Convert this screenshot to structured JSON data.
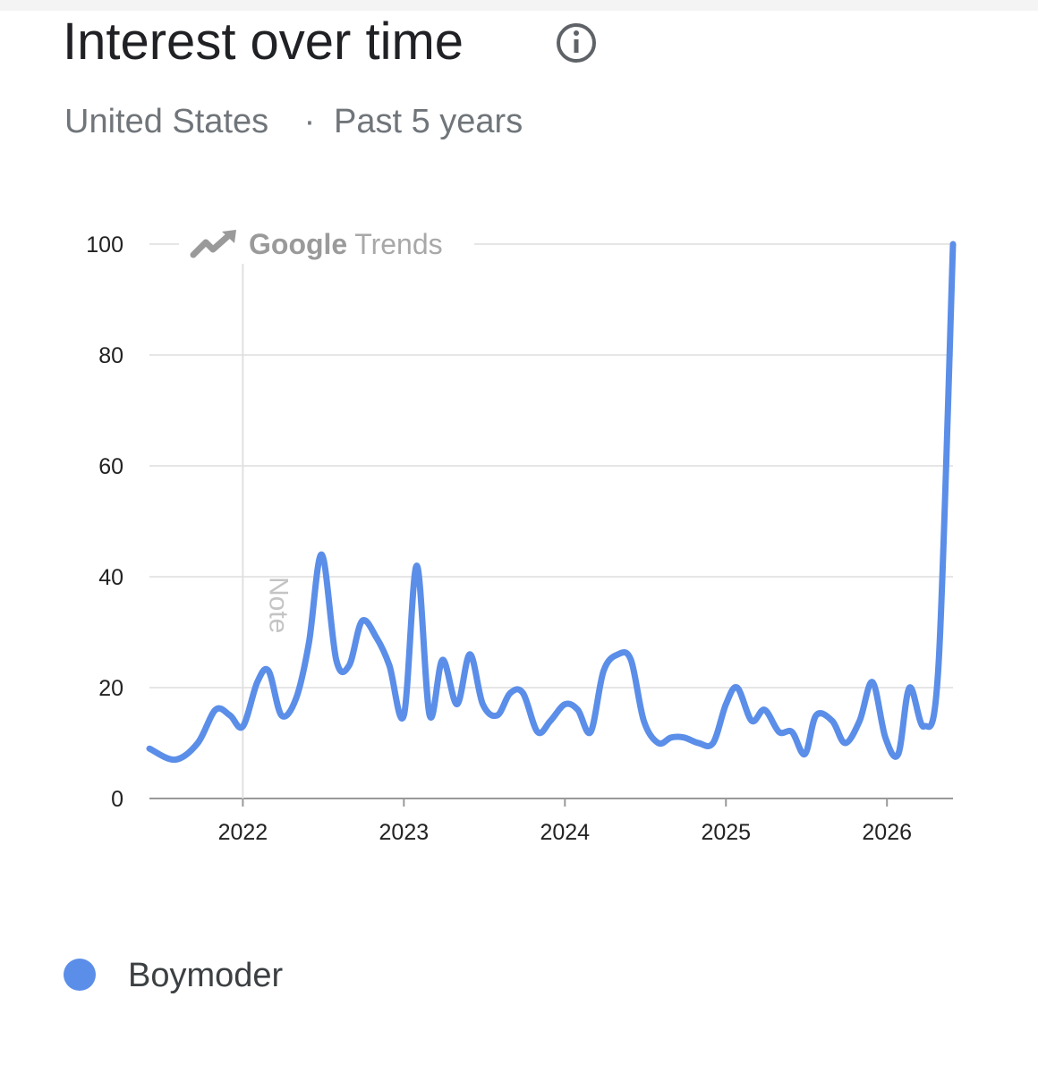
{
  "chart_data": {
    "type": "line",
    "title": "Interest over time",
    "subtitle": {
      "region": "United States",
      "separator": "·",
      "period": "Past 5 years"
    },
    "watermark": {
      "brand": "Google",
      "product": "Trends"
    },
    "note": {
      "x": 2022,
      "label": "Note"
    },
    "x": [
      2021.42,
      2021.58,
      2021.72,
      2021.83,
      2021.92,
      2022.0,
      2022.09,
      2022.16,
      2022.24,
      2022.33,
      2022.41,
      2022.49,
      2022.58,
      2022.66,
      2022.74,
      2022.83,
      2022.91,
      2023.0,
      2023.08,
      2023.16,
      2023.24,
      2023.33,
      2023.41,
      2023.49,
      2023.58,
      2023.66,
      2023.74,
      2023.83,
      2023.91,
      2024.0,
      2024.08,
      2024.16,
      2024.24,
      2024.33,
      2024.41,
      2024.49,
      2024.58,
      2024.66,
      2024.74,
      2024.83,
      2024.92,
      2025.0,
      2025.07,
      2025.16,
      2025.24,
      2025.33,
      2025.41,
      2025.49,
      2025.56,
      2025.66,
      2025.74,
      2025.83,
      2025.91,
      2025.99,
      2026.07,
      2026.14,
      2026.23,
      2026.32,
      2026.41
    ],
    "series": [
      {
        "name": "Boymoder",
        "color": "#5b8ee8",
        "values": [
          9,
          7,
          10,
          16,
          15,
          13,
          21,
          23,
          15,
          18,
          28,
          44,
          25,
          24,
          32,
          29,
          24,
          15,
          42,
          15,
          25,
          17,
          26,
          17,
          15,
          19,
          19,
          12,
          14,
          17,
          16,
          12,
          23,
          26,
          25,
          14,
          10,
          11,
          11,
          10,
          10,
          17,
          20,
          14,
          16,
          12,
          12,
          8,
          15,
          14,
          10,
          14,
          21,
          11,
          8,
          20,
          13,
          24,
          100
        ]
      }
    ],
    "xlim": [
      2021.42,
      2026.41
    ],
    "xticks": [
      2022,
      2023,
      2024,
      2025,
      2026
    ],
    "ylim": [
      0,
      100
    ],
    "yticks": [
      0,
      20,
      40,
      60,
      80,
      100
    ],
    "grid": true
  }
}
